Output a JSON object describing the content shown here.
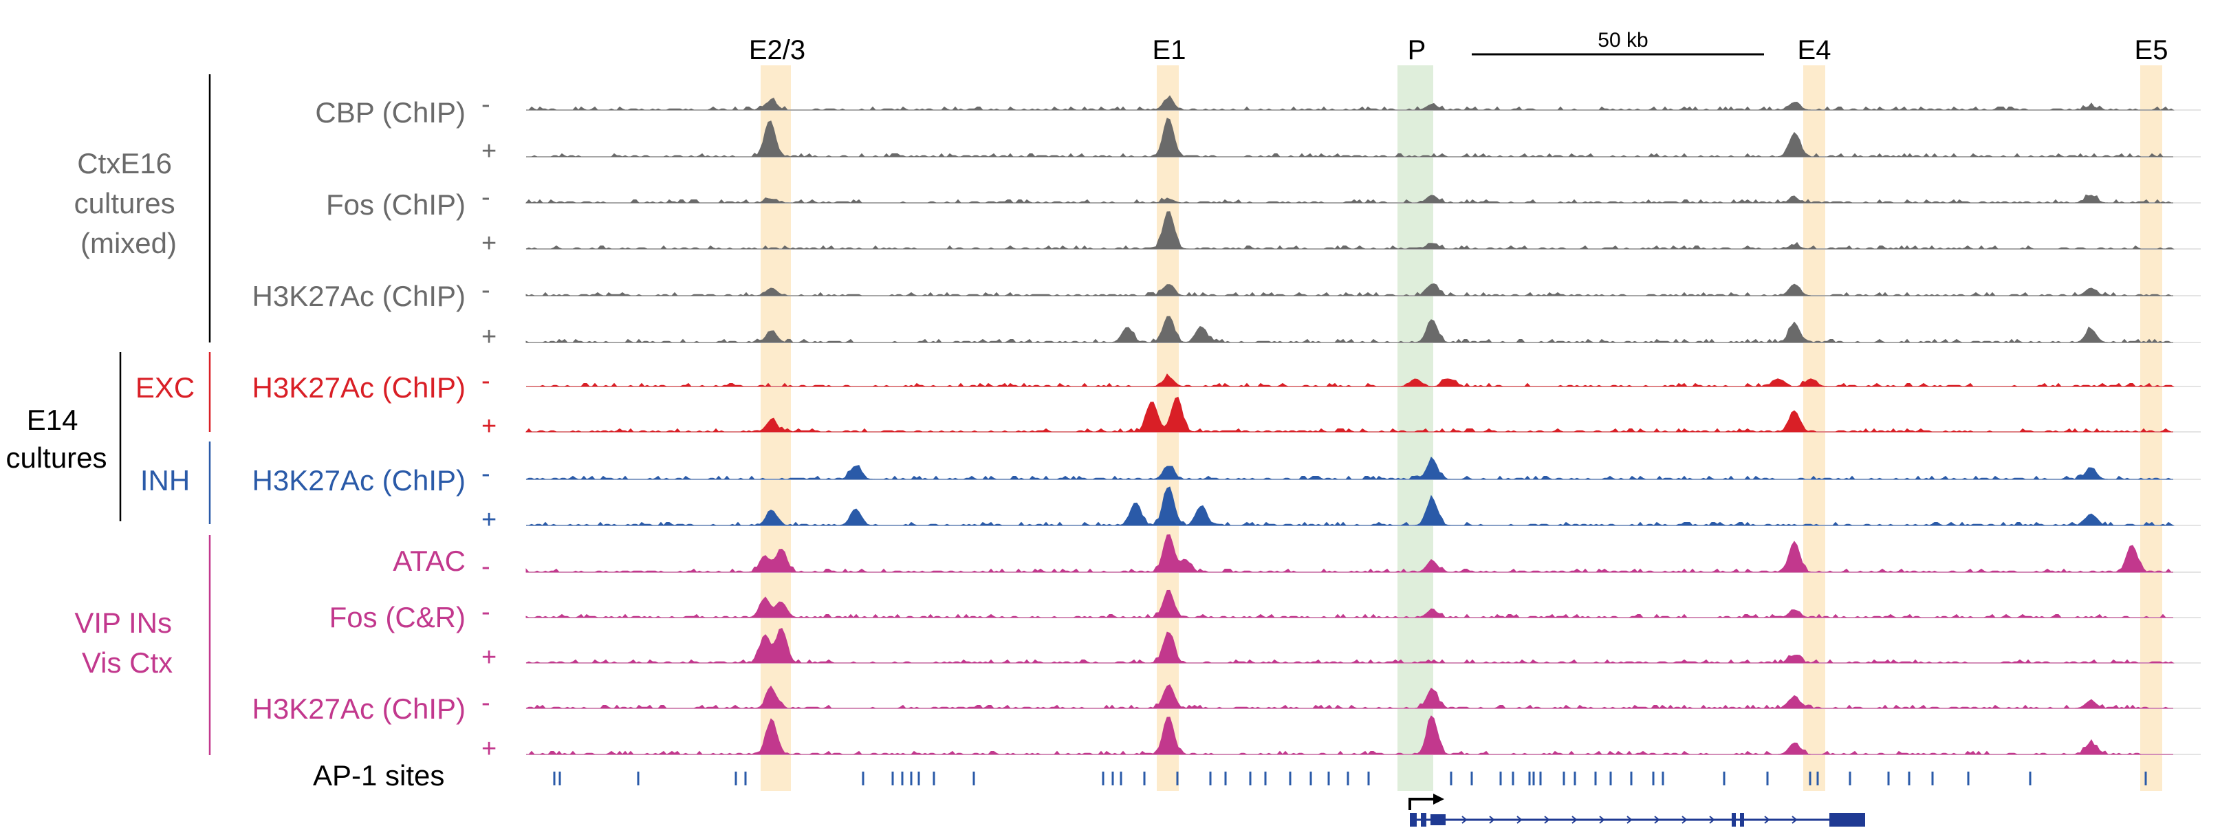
{
  "figure": {
    "regions": [
      {
        "label": "E2/3",
        "color": "#fdebcc"
      },
      {
        "label": "E1",
        "color": "#fdebcc"
      },
      {
        "label": "P",
        "color": "#dfeedb"
      },
      {
        "label": "E4",
        "color": "#fdebcc"
      },
      {
        "label": "E5",
        "color": "#fdebcc"
      }
    ],
    "scale_bar": {
      "label": "50 kb"
    },
    "groups": [
      {
        "lines": [
          "CtxE16",
          "cultures",
          "(mixed)"
        ],
        "color": "#6a6a6a"
      },
      {
        "lines": [
          "E14",
          "cultures"
        ],
        "color": "#000000"
      },
      {
        "lines": [
          "VIP INs",
          "Vis Ctx"
        ],
        "color": "#c2388d"
      }
    ],
    "subgroups": [
      {
        "label": "EXC",
        "color": "#d91f26"
      },
      {
        "label": "INH",
        "color": "#2a5aa8"
      }
    ],
    "track_labels": [
      {
        "label": "CBP (ChIP)",
        "color": "#6a6a6a"
      },
      {
        "label": "Fos (ChIP)",
        "color": "#6a6a6a"
      },
      {
        "label": "H3K27Ac (ChIP)",
        "color": "#6a6a6a"
      },
      {
        "label": "H3K27Ac (ChIP)",
        "color": "#d91f26"
      },
      {
        "label": "H3K27Ac (ChIP)",
        "color": "#2a5aa8"
      },
      {
        "label": "ATAC",
        "color": "#c2388d"
      },
      {
        "label": "Fos (C&R)",
        "color": "#c2388d"
      },
      {
        "label": "H3K27Ac (ChIP)",
        "color": "#c2388d"
      }
    ],
    "tracks": [
      {
        "sign": "-",
        "color": "#6a6a6a",
        "peaks": [
          [
            0.149,
            0.25
          ],
          [
            0.39,
            0.3
          ],
          [
            0.55,
            0.15
          ],
          [
            0.77,
            0.2
          ],
          [
            0.95,
            0.1
          ]
        ]
      },
      {
        "sign": "+",
        "color": "#6a6a6a",
        "peaks": [
          [
            0.148,
            0.95
          ],
          [
            0.39,
            1.0
          ],
          [
            0.77,
            0.6
          ]
        ]
      },
      {
        "sign": "-",
        "color": "#6a6a6a",
        "peaks": [
          [
            0.149,
            0.1
          ],
          [
            0.39,
            0.1
          ],
          [
            0.55,
            0.2
          ],
          [
            0.77,
            0.1
          ],
          [
            0.95,
            0.2
          ]
        ]
      },
      {
        "sign": "+",
        "color": "#6a6a6a",
        "peaks": [
          [
            0.39,
            1.0
          ],
          [
            0.55,
            0.15
          ],
          [
            0.77,
            0.1
          ]
        ]
      },
      {
        "sign": "-",
        "color": "#6a6a6a",
        "peaks": [
          [
            0.149,
            0.2
          ],
          [
            0.39,
            0.3
          ],
          [
            0.55,
            0.3
          ],
          [
            0.77,
            0.3
          ],
          [
            0.95,
            0.2
          ]
        ]
      },
      {
        "sign": "+",
        "color": "#6a6a6a",
        "peaks": [
          [
            0.149,
            0.3
          ],
          [
            0.365,
            0.4
          ],
          [
            0.39,
            0.7
          ],
          [
            0.41,
            0.4
          ],
          [
            0.55,
            0.6
          ],
          [
            0.77,
            0.5
          ],
          [
            0.95,
            0.35
          ]
        ]
      },
      {
        "sign": "-",
        "color": "#d91f26",
        "peaks": [
          [
            0.39,
            0.25
          ],
          [
            0.54,
            0.2
          ],
          [
            0.56,
            0.2
          ],
          [
            0.76,
            0.2
          ],
          [
            0.78,
            0.2
          ]
        ]
      },
      {
        "sign": "+",
        "color": "#d91f26",
        "peaks": [
          [
            0.149,
            0.3
          ],
          [
            0.38,
            0.8
          ],
          [
            0.395,
            0.9
          ],
          [
            0.77,
            0.55
          ]
        ]
      },
      {
        "sign": "-",
        "color": "#2a5aa8",
        "peaks": [
          [
            0.2,
            0.35
          ],
          [
            0.39,
            0.35
          ],
          [
            0.55,
            0.5
          ],
          [
            0.95,
            0.3
          ]
        ]
      },
      {
        "sign": "+",
        "color": "#2a5aa8",
        "peaks": [
          [
            0.149,
            0.4
          ],
          [
            0.2,
            0.4
          ],
          [
            0.37,
            0.6
          ],
          [
            0.39,
            1.0
          ],
          [
            0.41,
            0.5
          ],
          [
            0.55,
            0.7
          ],
          [
            0.95,
            0.3
          ]
        ]
      },
      {
        "sign": "-",
        "color": "#c2388d",
        "peaks": [
          [
            0.145,
            0.4
          ],
          [
            0.155,
            0.6
          ],
          [
            0.39,
            1.0
          ],
          [
            0.4,
            0.3
          ],
          [
            0.55,
            0.3
          ],
          [
            0.77,
            0.8
          ],
          [
            0.975,
            0.7
          ]
        ]
      },
      {
        "sign": "-",
        "color": "#c2388d",
        "peaks": [
          [
            0.145,
            0.5
          ],
          [
            0.155,
            0.4
          ],
          [
            0.39,
            0.7
          ],
          [
            0.55,
            0.2
          ],
          [
            0.77,
            0.2
          ]
        ]
      },
      {
        "sign": "+",
        "color": "#c2388d",
        "peaks": [
          [
            0.145,
            0.7
          ],
          [
            0.155,
            0.9
          ],
          [
            0.39,
            0.8
          ],
          [
            0.77,
            0.2
          ]
        ]
      },
      {
        "sign": "-",
        "color": "#c2388d",
        "peaks": [
          [
            0.149,
            0.5
          ],
          [
            0.39,
            0.6
          ],
          [
            0.55,
            0.5
          ],
          [
            0.77,
            0.3
          ],
          [
            0.95,
            0.2
          ]
        ]
      },
      {
        "sign": "+",
        "color": "#c2388d",
        "peaks": [
          [
            0.149,
            0.9
          ],
          [
            0.39,
            1.0
          ],
          [
            0.55,
            1.0
          ],
          [
            0.77,
            0.3
          ],
          [
            0.95,
            0.3
          ]
        ]
      }
    ],
    "ap1": {
      "label": "AP-1 sites",
      "color": "#2a5aa8"
    },
    "gene": {
      "color": "#1f3a93"
    }
  }
}
